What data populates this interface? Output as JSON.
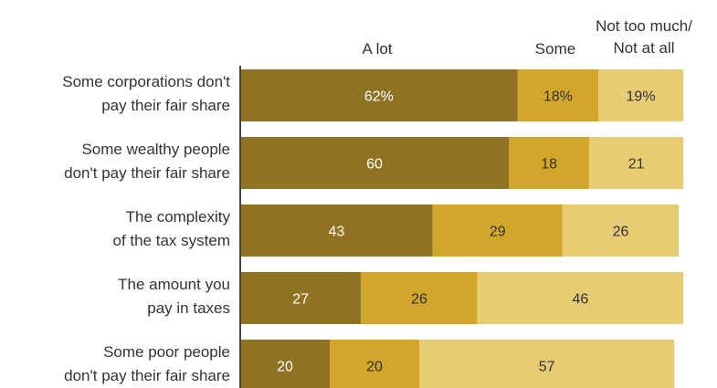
{
  "colors": {
    "a_lot": "#907224",
    "some": "#d1a62b",
    "not_much": "#e8cc74",
    "text_light": "#ffffff",
    "text_dark": "#333333"
  },
  "chart_data": {
    "type": "bar",
    "orientation": "horizontal",
    "stacked": true,
    "legend_placement": "top",
    "categories": [
      "Some corporations don't pay their fair share",
      "Some wealthy people don't pay their fair share",
      "The complexity of the tax system",
      "The amount you pay in taxes",
      "Some poor people don't pay their fair share"
    ],
    "category_lines": [
      [
        "Some corporations don't",
        "pay their fair share"
      ],
      [
        "Some wealthy people",
        "don't pay their fair share"
      ],
      [
        "The complexity",
        "of the tax system"
      ],
      [
        "The amount you",
        "pay in taxes"
      ],
      [
        "Some poor people",
        "don't pay their fair share"
      ]
    ],
    "series": [
      {
        "name": "A lot",
        "values": [
          62,
          60,
          43,
          27,
          20
        ],
        "labels": [
          "62%",
          "60",
          "43",
          "27",
          "20"
        ]
      },
      {
        "name": "Some",
        "values": [
          18,
          18,
          29,
          26,
          20
        ],
        "labels": [
          "18%",
          "18",
          "29",
          "26",
          "20"
        ]
      },
      {
        "name": "Not too much/ Not at all",
        "name_lines": [
          "Not too much/",
          "Not at all"
        ],
        "values": [
          19,
          21,
          26,
          46,
          57
        ],
        "labels": [
          "19%",
          "21",
          "26",
          "46",
          "57"
        ]
      }
    ],
    "xlim": [
      0,
      100
    ],
    "grid": false
  }
}
